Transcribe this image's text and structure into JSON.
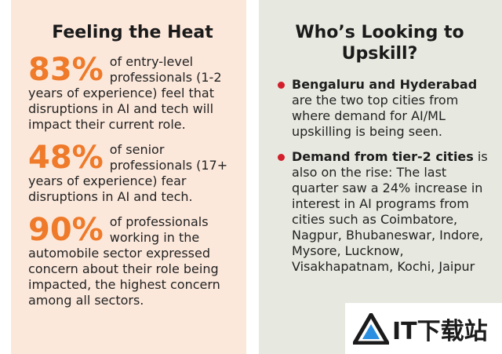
{
  "left": {
    "title": "Feeling the Heat",
    "stats": [
      {
        "value": "83%",
        "text": "of entry-level professionals (1-2 years of experience) feel that disruptions in AI and tech will impact their current role."
      },
      {
        "value": "48%",
        "text": "of senior professionals (17+ years of experience) fear disruptions in AI and tech."
      },
      {
        "value": "90%",
        "text": "of professionals working in the automobile sector expressed concern about their role being impacted, the highest concern among all sectors."
      }
    ]
  },
  "right": {
    "title": "Who’s Looking to Upskill?",
    "bullets": [
      {
        "bold": "Bengaluru and Hyderabad",
        "text": "are the two top cities from where demand for AI/ML upskilling is being seen."
      },
      {
        "bold": "Demand from tier-2 cities",
        "text": "is also on the rise: The last quarter saw a 24% increase in interest in AI programs from cities such as Coimbatore, Nagpur, Bhubaneswar, Indore, Mysore, Lucknow, Visakhapatnam, Kochi, Jaipur"
      }
    ]
  },
  "watermark": "IT下载站"
}
